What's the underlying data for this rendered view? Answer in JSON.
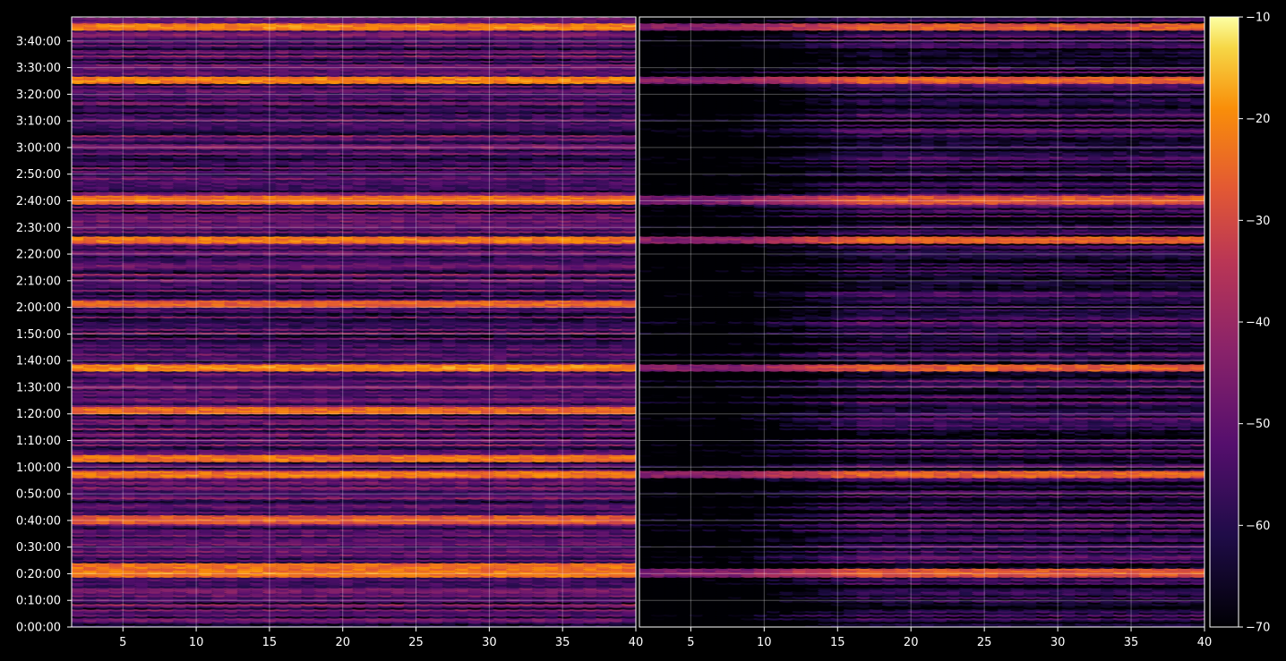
{
  "chart_data": {
    "type": "heatmap",
    "title": "",
    "xlabel": "",
    "ylabel": "",
    "colormap": "inferno",
    "background": "#000000",
    "grid": true,
    "panels": [
      {
        "name": "",
        "xlim": [
          1.5,
          40
        ],
        "x_ticks": [
          5,
          10,
          15,
          20,
          25,
          30,
          35,
          40
        ],
        "x_tick_labels": [
          "5",
          "10",
          "15",
          "20",
          "25",
          "30",
          "35",
          "40"
        ],
        "floor": -56,
        "hot_rows": [
          {
            "t": "0:20:00",
            "v": -21
          },
          {
            "t": "0:22:00",
            "v": -22
          },
          {
            "t": "0:40:00",
            "v": -25
          },
          {
            "t": "0:57:00",
            "v": -21
          },
          {
            "t": "1:03:00",
            "v": -22
          },
          {
            "t": "1:21:00",
            "v": -23
          },
          {
            "t": "1:37:00",
            "v": -19
          },
          {
            "t": "2:01:00",
            "v": -25
          },
          {
            "t": "2:25:00",
            "v": -21
          },
          {
            "t": "2:40:00",
            "v": -22
          },
          {
            "t": "3:25:00",
            "v": -20
          },
          {
            "t": "3:45:00",
            "v": -20
          }
        ]
      },
      {
        "name": "",
        "xlim": [
          1.5,
          40
        ],
        "x_ticks": [
          5,
          10,
          15,
          20,
          25,
          30,
          35,
          40
        ],
        "x_tick_labels": [
          "5",
          "10",
          "15",
          "20",
          "25",
          "30",
          "35",
          "40"
        ],
        "floor": -63,
        "quiet_x_range": [
          1.5,
          17
        ],
        "hot_rows": [
          {
            "t": "0:20:00",
            "v": -26
          },
          {
            "t": "0:57:00",
            "v": -24
          },
          {
            "t": "1:37:00",
            "v": -25
          },
          {
            "t": "2:25:00",
            "v": -24
          },
          {
            "t": "2:40:00",
            "v": -26
          },
          {
            "t": "3:25:00",
            "v": -25
          },
          {
            "t": "3:45:00",
            "v": -25
          }
        ]
      }
    ],
    "y_range_seconds": [
      0,
      13740
    ],
    "y_ticks": [
      "0:00:00",
      "0:10:00",
      "0:20:00",
      "0:30:00",
      "0:40:00",
      "0:50:00",
      "1:00:00",
      "1:10:00",
      "1:20:00",
      "1:30:00",
      "1:40:00",
      "1:50:00",
      "2:00:00",
      "2:10:00",
      "2:20:00",
      "2:30:00",
      "2:40:00",
      "2:50:00",
      "3:00:00",
      "3:10:00",
      "3:20:00",
      "3:30:00",
      "3:40:00"
    ],
    "colorbar": {
      "min": -70,
      "max": -10,
      "ticks": [
        -10,
        -20,
        -30,
        -40,
        -50,
        -60,
        -70
      ],
      "tick_labels": [
        "−10",
        "−20",
        "−30",
        "−40",
        "−50",
        "−60",
        "−70"
      ]
    }
  }
}
